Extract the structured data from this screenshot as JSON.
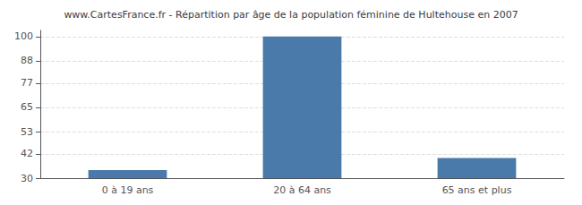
{
  "chart_data": {
    "type": "bar",
    "title": "www.CartesFrance.fr - Répartition par âge de la population féminine de Hultehouse en 2007",
    "categories": [
      "0 à 19 ans",
      "20 à 64 ans",
      "65 ans et plus"
    ],
    "values": [
      34,
      100,
      40
    ],
    "color": "#4a7aaa",
    "ylim": [
      30,
      103
    ],
    "yticks": [
      30,
      42,
      53,
      65,
      77,
      88,
      100
    ],
    "grid": true
  }
}
